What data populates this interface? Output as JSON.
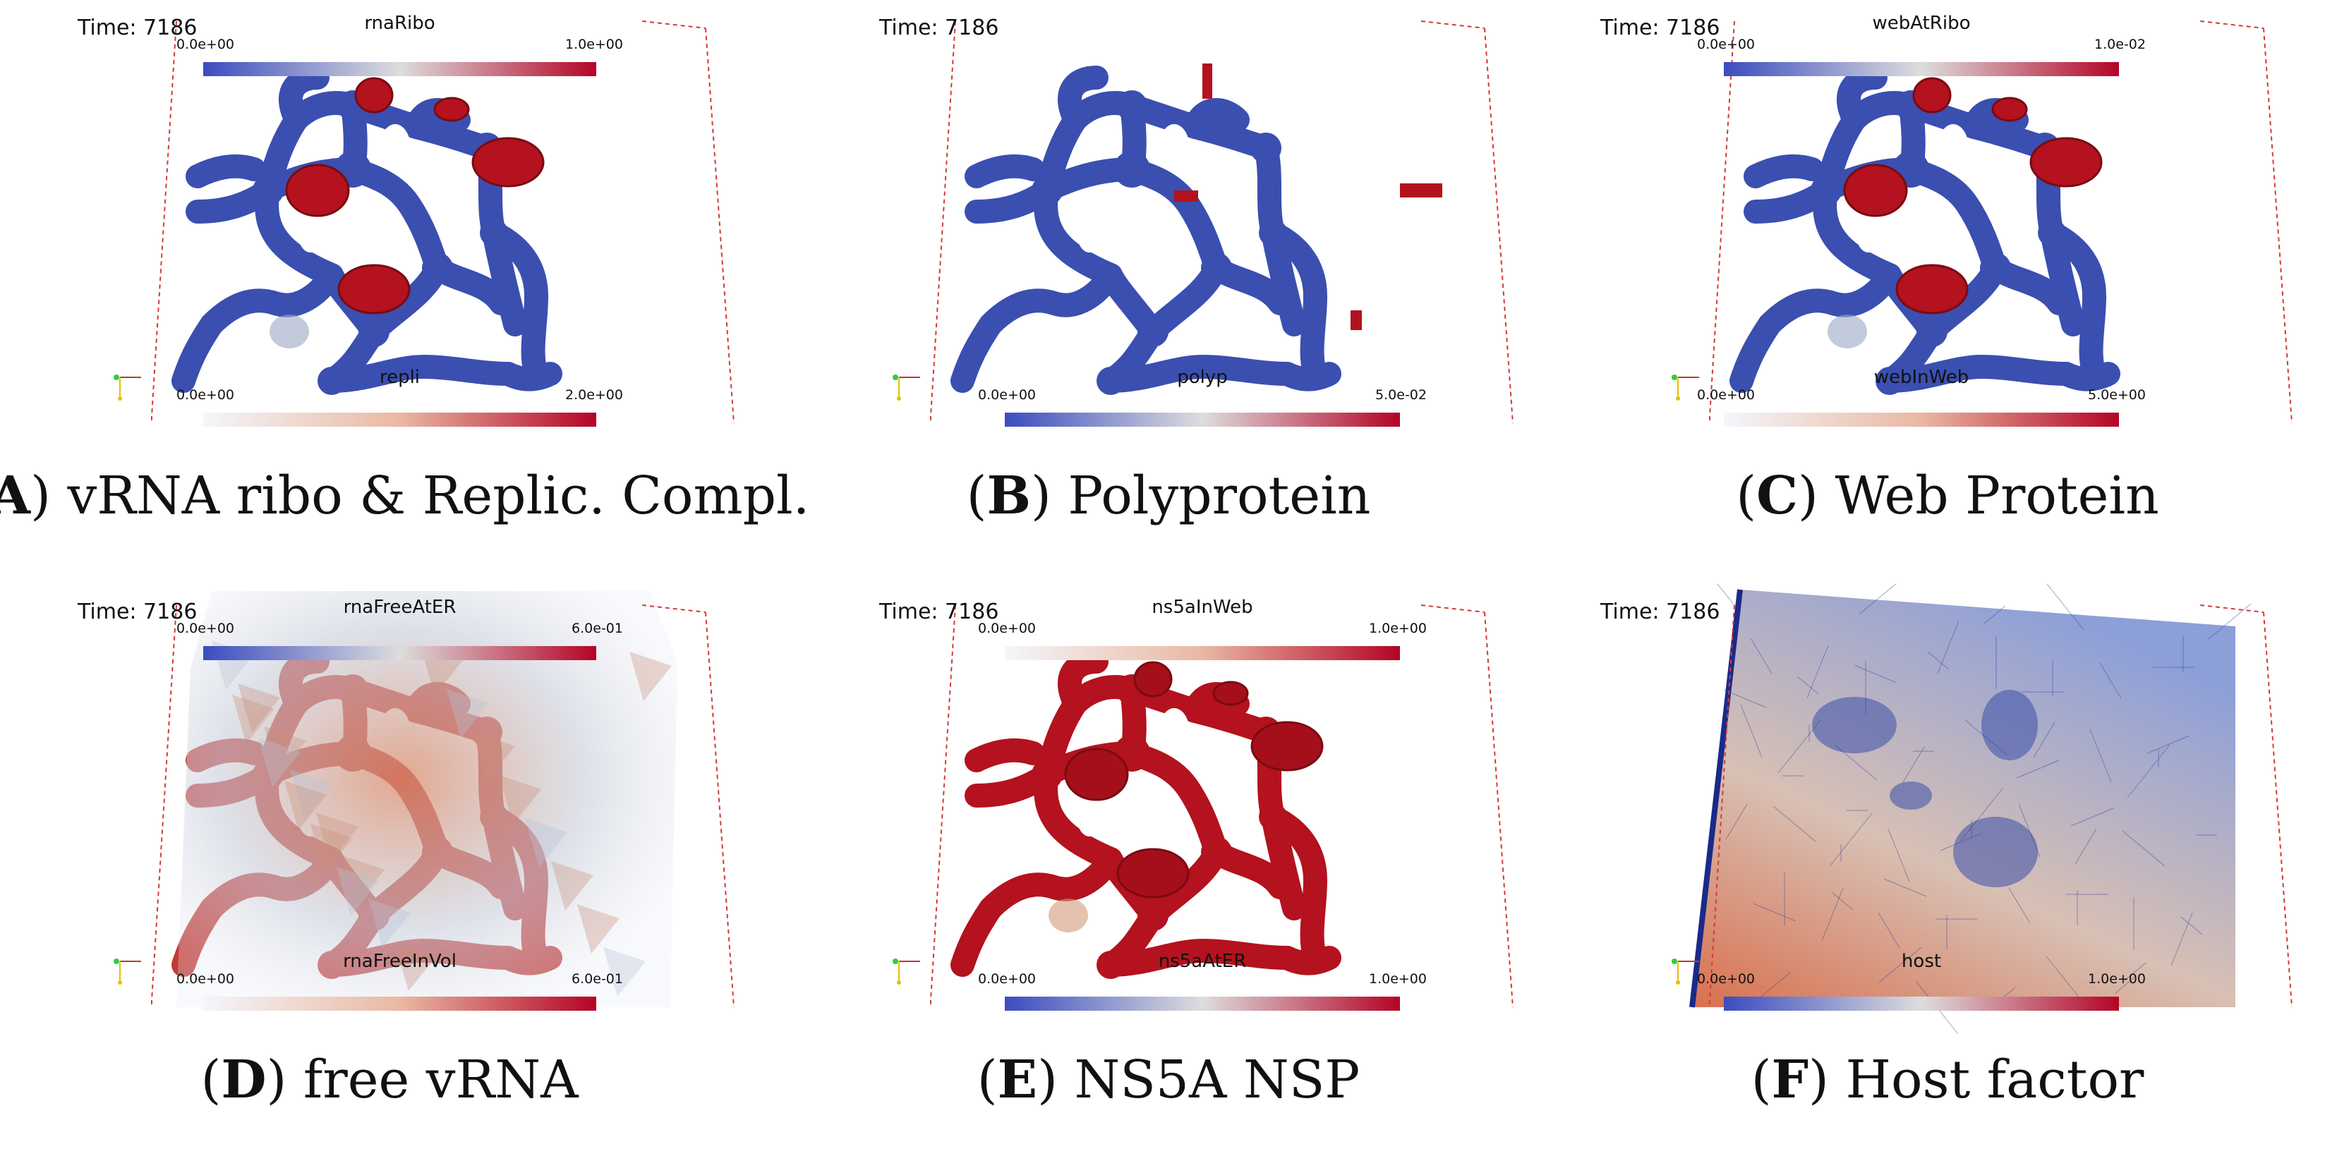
{
  "panels": [
    {
      "letter": "A",
      "caption": "vRNA ribo & Replic. Compl.",
      "time": "Time: 7186",
      "top_bar": {
        "title": "rnaRibo",
        "min": "0.0e+00",
        "max": "1.0e+00",
        "colormap": "coolwarm"
      },
      "bottom_bar": {
        "title": "repli",
        "min": "0.0e+00",
        "max": "2.0e+00",
        "colormap": "white-to-red"
      }
    },
    {
      "letter": "B",
      "caption": "Polyprotein",
      "time": "Time: 7186",
      "top_bar": {
        "title": "",
        "min": "",
        "max": "",
        "colormap": "none"
      },
      "bottom_bar": {
        "title": "polyp",
        "min": "0.0e+00",
        "max": "5.0e-02",
        "colormap": "coolwarm"
      }
    },
    {
      "letter": "C",
      "caption": "Web Protein",
      "time": "Time: 7186",
      "top_bar": {
        "title": "webAtRibo",
        "min": "0.0e+00",
        "max": "1.0e-02",
        "colormap": "coolwarm"
      },
      "bottom_bar": {
        "title": "webInWeb",
        "min": "0.0e+00",
        "max": "5.0e+00",
        "colormap": "white-to-red"
      }
    },
    {
      "letter": "D",
      "caption": "free vRNA",
      "time": "Time: 7186",
      "top_bar": {
        "title": "rnaFreeAtER",
        "min": "0.0e+00",
        "max": "6.0e-01",
        "colormap": "coolwarm"
      },
      "bottom_bar": {
        "title": "rnaFreeInVol",
        "min": "0.0e+00",
        "max": "6.0e-01",
        "colormap": "white-to-red"
      }
    },
    {
      "letter": "E",
      "caption": "NS5A NSP",
      "time": "Time: 7186",
      "top_bar": {
        "title": "ns5aInWeb",
        "min": "0.0e+00",
        "max": "1.0e+00",
        "colormap": "white-to-red"
      },
      "bottom_bar": {
        "title": "ns5aAtER",
        "min": "0.0e+00",
        "max": "1.0e+00",
        "colormap": "coolwarm"
      }
    },
    {
      "letter": "F",
      "caption": "Host factor",
      "time": "Time: 7186",
      "top_bar": {
        "title": "",
        "min": "",
        "max": "",
        "colormap": "none"
      },
      "bottom_bar": {
        "title": "host",
        "min": "0.0e+00",
        "max": "1.0e+00",
        "colormap": "coolwarm"
      }
    }
  ],
  "colors": {
    "er_blue": "#3a4fb0",
    "complex_red": "#b3121e",
    "box_line": "#d43a3a",
    "coolwarm_low": "#3b4cc0",
    "coolwarm_mid": "#dddddd",
    "coolwarm_high": "#b40426",
    "white_red_low": "#f4f6fb",
    "white_red_high": "#b40426"
  }
}
